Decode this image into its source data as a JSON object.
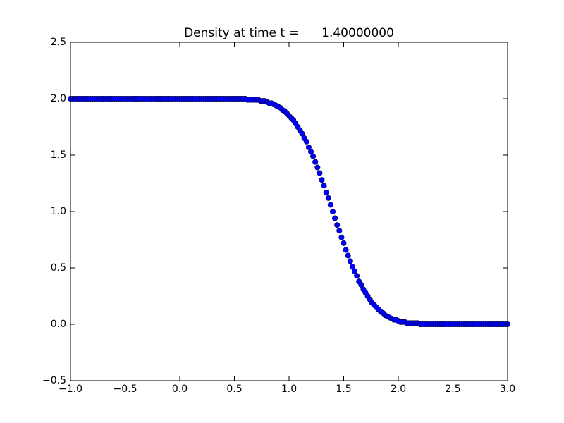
{
  "chart_data": {
    "type": "scatter",
    "title": "Density at time t =      1.40000000",
    "x": [
      -1,
      -0.98,
      -0.96,
      -0.94,
      -0.92,
      -0.9,
      -0.88,
      -0.86,
      -0.84,
      -0.82,
      -0.8,
      -0.78,
      -0.76,
      -0.74,
      -0.72,
      -0.7,
      -0.68,
      -0.66,
      -0.64,
      -0.62,
      -0.6,
      -0.58,
      -0.56,
      -0.54,
      -0.52,
      -0.5,
      -0.48,
      -0.46,
      -0.44,
      -0.42,
      -0.4,
      -0.38,
      -0.36,
      -0.34,
      -0.32,
      -0.3,
      -0.28,
      -0.26,
      -0.24,
      -0.22,
      -0.2,
      -0.18,
      -0.16,
      -0.14,
      -0.12,
      -0.1,
      -0.08,
      -0.06,
      -0.04,
      -0.02,
      0,
      0.02,
      0.04,
      0.06,
      0.08,
      0.1,
      0.12,
      0.14,
      0.16,
      0.18,
      0.2,
      0.22,
      0.24,
      0.26,
      0.28,
      0.3,
      0.32,
      0.34,
      0.36,
      0.38,
      0.4,
      0.42,
      0.44,
      0.46,
      0.48,
      0.5,
      0.52,
      0.54,
      0.56,
      0.58,
      0.6,
      0.62,
      0.64,
      0.66,
      0.68,
      0.7,
      0.72,
      0.74,
      0.76,
      0.78,
      0.8,
      0.82,
      0.84,
      0.86,
      0.88,
      0.9,
      0.92,
      0.94,
      0.96,
      0.98,
      1,
      1.02,
      1.04,
      1.06,
      1.08,
      1.1,
      1.12,
      1.14,
      1.16,
      1.18,
      1.2,
      1.22,
      1.24,
      1.26,
      1.28,
      1.3,
      1.32,
      1.34,
      1.36,
      1.38,
      1.4,
      1.42,
      1.44,
      1.46,
      1.48,
      1.5,
      1.52,
      1.54,
      1.56,
      1.58,
      1.6,
      1.62,
      1.64,
      1.66,
      1.68,
      1.7,
      1.72,
      1.74,
      1.76,
      1.78,
      1.8,
      1.82,
      1.84,
      1.86,
      1.88,
      1.9,
      1.92,
      1.94,
      1.96,
      1.98,
      2,
      2.02,
      2.04,
      2.06,
      2.08,
      2.1,
      2.12,
      2.14,
      2.16,
      2.18,
      2.2,
      2.22,
      2.24,
      2.26,
      2.28,
      2.3,
      2.32,
      2.34,
      2.36,
      2.38,
      2.4,
      2.42,
      2.44,
      2.46,
      2.48,
      2.5,
      2.52,
      2.54,
      2.56,
      2.58,
      2.6,
      2.62,
      2.64,
      2.66,
      2.68,
      2.7,
      2.72,
      2.74,
      2.76,
      2.78,
      2.8,
      2.82,
      2.84,
      2.86,
      2.88,
      2.9,
      2.92,
      2.94,
      2.96,
      2.98,
      3
    ],
    "values": [
      2,
      2,
      2,
      2,
      2,
      2,
      2,
      2,
      2,
      2,
      2,
      2,
      2,
      2,
      2,
      2,
      2,
      2,
      2,
      2,
      2,
      2,
      2,
      2,
      2,
      2,
      2,
      2,
      2,
      2,
      2,
      2,
      2,
      2,
      2,
      2,
      2,
      2,
      2,
      2,
      2,
      2,
      2,
      2,
      2,
      2,
      2,
      2,
      2,
      2,
      2,
      2,
      2,
      2,
      2,
      2,
      2,
      2,
      2,
      2,
      2,
      2,
      2,
      2,
      2,
      2,
      2,
      2,
      2,
      2,
      2,
      2,
      2,
      2,
      2,
      2,
      2,
      2,
      2,
      2,
      2,
      1.99,
      1.99,
      1.99,
      1.99,
      1.99,
      1.99,
      1.98,
      1.98,
      1.98,
      1.97,
      1.96,
      1.96,
      1.95,
      1.94,
      1.93,
      1.92,
      1.9,
      1.89,
      1.87,
      1.85,
      1.83,
      1.81,
      1.78,
      1.75,
      1.72,
      1.69,
      1.65,
      1.62,
      1.57,
      1.53,
      1.49,
      1.44,
      1.39,
      1.34,
      1.28,
      1.23,
      1.17,
      1.12,
      1.06,
      1,
      0.94,
      0.88,
      0.83,
      0.77,
      0.72,
      0.66,
      0.61,
      0.56,
      0.51,
      0.47,
      0.43,
      0.38,
      0.35,
      0.31,
      0.28,
      0.25,
      0.22,
      0.19,
      0.17,
      0.15,
      0.13,
      0.11,
      0.1,
      0.08,
      0.07,
      0.06,
      0.05,
      0.04,
      0.04,
      0.03,
      0.02,
      0.02,
      0.02,
      0.01,
      0.01,
      0.01,
      0.01,
      0.01,
      0.01,
      0,
      0,
      0,
      0,
      0,
      0,
      0,
      0,
      0,
      0,
      0,
      0,
      0,
      0,
      0,
      0,
      0,
      0,
      0,
      0,
      0,
      0,
      0,
      0,
      0,
      0,
      0,
      0,
      0,
      0,
      0,
      0,
      0,
      0,
      0,
      0,
      0,
      0,
      0,
      0,
      0
    ],
    "color": "#0000ff",
    "xlim": [
      -1,
      3
    ],
    "xticks": [
      {
        "value": -1,
        "label": "−1.0"
      },
      {
        "value": -0.5,
        "label": "−0.5"
      },
      {
        "value": 0,
        "label": "0.0"
      },
      {
        "value": 0.5,
        "label": "0.5"
      },
      {
        "value": 1,
        "label": "1.0"
      },
      {
        "value": 1.5,
        "label": "1.5"
      },
      {
        "value": 2,
        "label": "2.0"
      },
      {
        "value": 2.5,
        "label": "2.5"
      },
      {
        "value": 3,
        "label": "3.0"
      }
    ],
    "ylim": [
      -0.5,
      2.5
    ],
    "yticks": [
      {
        "value": -0.5,
        "label": "−0.5"
      },
      {
        "value": 0,
        "label": "0.0"
      },
      {
        "value": 0.5,
        "label": "0.5"
      },
      {
        "value": 1,
        "label": "1.0"
      },
      {
        "value": 1.5,
        "label": "1.5"
      },
      {
        "value": 2,
        "label": "2.0"
      },
      {
        "value": 2.5,
        "label": "2.5"
      }
    ]
  }
}
